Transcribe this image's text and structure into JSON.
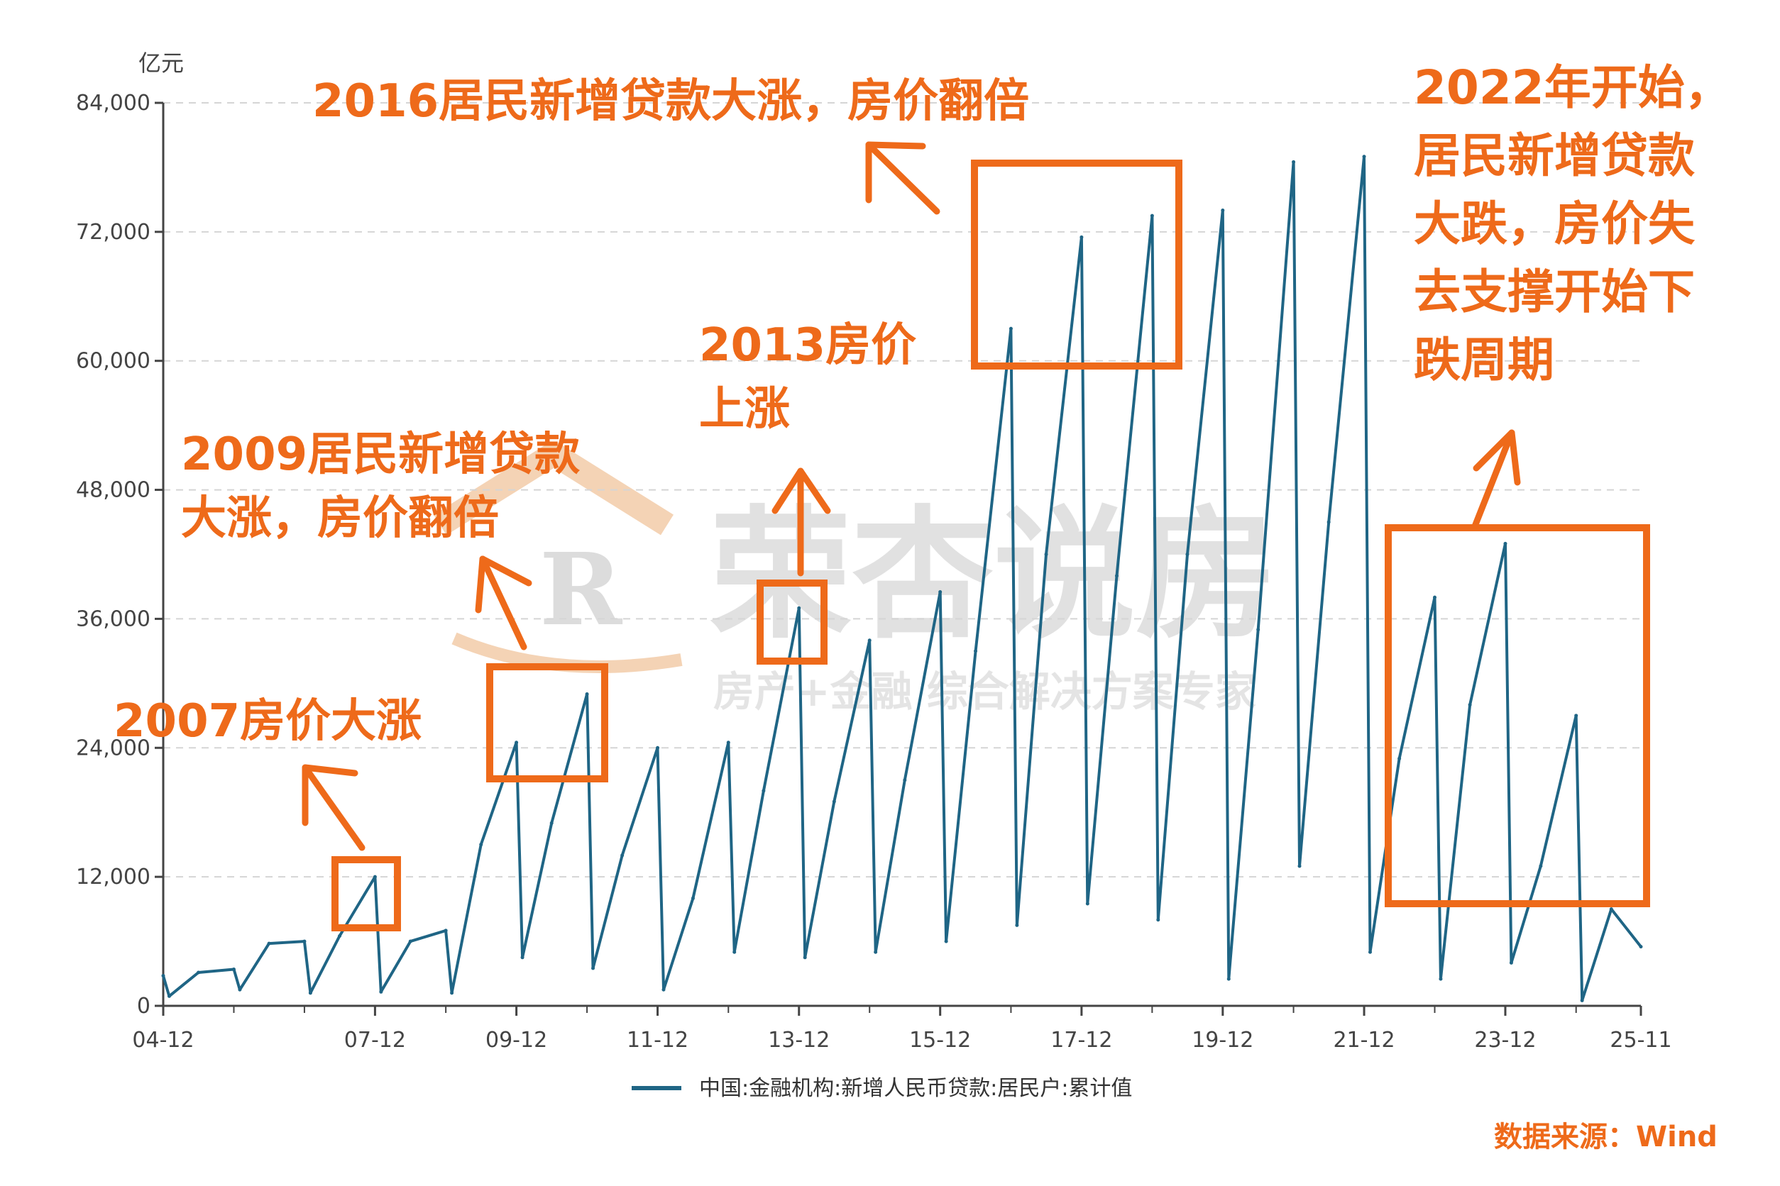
{
  "colors": {
    "series": "#1f6585",
    "annotation": "#ee6a1a",
    "grid": "#d5d5d5",
    "axis": "#444444",
    "watermark": "#d9d9d9",
    "watermark_accent": "#f3cfae"
  },
  "chart_data": {
    "type": "line",
    "unit_label": "亿元",
    "ylim": [
      0,
      84000
    ],
    "y_ticks": [
      0,
      12000,
      24000,
      36000,
      48000,
      60000,
      72000,
      84000
    ],
    "y_tick_labels": [
      "0",
      "12,000",
      "24,000",
      "36,000",
      "48,000",
      "60,000",
      "72,000",
      "84,000"
    ],
    "x_tick_labels": [
      "04-12",
      "07-12",
      "09-12",
      "11-12",
      "13-12",
      "15-12",
      "17-12",
      "19-12",
      "21-12",
      "23-12",
      "25-11"
    ],
    "grid": "horizontal dashed",
    "legend_position": "bottom",
    "series": [
      {
        "name": "中国:金融机构:新增人民币贷款:居民户:累计值",
        "x": [
          "2004-12",
          "2005-01",
          "2005-06",
          "2005-12",
          "2006-01",
          "2006-06",
          "2006-12",
          "2007-01",
          "2007-06",
          "2007-12",
          "2008-01",
          "2008-06",
          "2008-12",
          "2009-01",
          "2009-06",
          "2009-12",
          "2010-01",
          "2010-06",
          "2010-12",
          "2011-01",
          "2011-06",
          "2011-12",
          "2012-01",
          "2012-06",
          "2012-12",
          "2013-01",
          "2013-06",
          "2013-12",
          "2014-01",
          "2014-06",
          "2014-12",
          "2015-01",
          "2015-06",
          "2015-12",
          "2016-01",
          "2016-06",
          "2016-12",
          "2017-01",
          "2017-06",
          "2017-12",
          "2018-01",
          "2018-06",
          "2018-12",
          "2019-01",
          "2019-06",
          "2019-12",
          "2020-01",
          "2020-06",
          "2020-12",
          "2021-01",
          "2021-06",
          "2021-12",
          "2022-01",
          "2022-06",
          "2022-12",
          "2023-01",
          "2023-06",
          "2023-12",
          "2024-01",
          "2024-06",
          "2024-12",
          "2025-01",
          "2025-06",
          "2025-11"
        ],
        "values": [
          2800,
          900,
          3100,
          3400,
          1500,
          5800,
          6000,
          1200,
          6500,
          12000,
          1300,
          6000,
          7000,
          1200,
          15000,
          24500,
          4500,
          17000,
          29000,
          3500,
          14000,
          24000,
          1500,
          10000,
          24500,
          5000,
          20000,
          37000,
          4500,
          19000,
          34000,
          5000,
          21000,
          38500,
          6000,
          33000,
          63000,
          7500,
          42000,
          71500,
          9500,
          40000,
          73500,
          8000,
          42000,
          74000,
          2500,
          35000,
          78500,
          13000,
          45000,
          79000,
          5000,
          23000,
          38000,
          2500,
          28000,
          43000,
          4000,
          13000,
          27000,
          500,
          9000,
          5500
        ]
      }
    ]
  },
  "annotations": {
    "a2007": "2007房价大涨",
    "a2009": "2009居民新增贷款\n大涨，房价翻倍",
    "a2013": "2013房价\n上涨",
    "a2016": "2016居民新增贷款大涨，房价翻倍",
    "a2022": "2022年开始，\n居民新增贷款\n大跌，房价失\n去支撑开始下\n跌周期"
  },
  "source": "数据来源：Wind",
  "watermark": {
    "title": "荣杏说房",
    "logo_letter": "R",
    "subtitle": "房产+金融 综合解决方案专家"
  }
}
